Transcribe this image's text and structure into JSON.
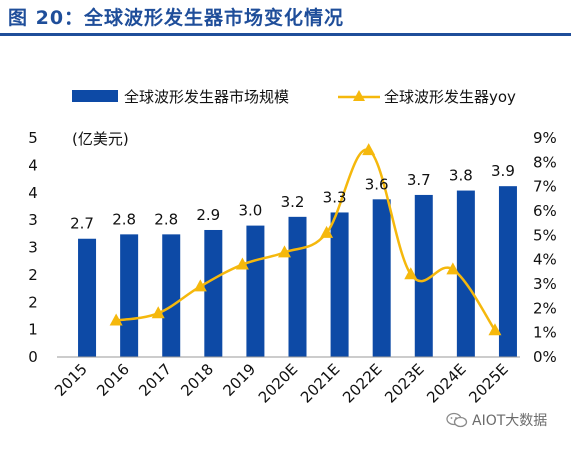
{
  "figure": {
    "title": "图 20：全球波形发生器市场变化情况",
    "watermark": "AIOT大数据"
  },
  "colors": {
    "title": "#1f4e9a",
    "bar": "#0d4aa6",
    "line": "#f5b80c"
  },
  "chart_data": {
    "type": "bar+line",
    "categories": [
      "2015",
      "2016",
      "2017",
      "2018",
      "2019",
      "2020E",
      "2021E",
      "2022E",
      "2023E",
      "2024E",
      "2025E"
    ],
    "series": [
      {
        "name": "全球波形发生器市场规模",
        "type": "bar",
        "axis": "left",
        "values": [
          2.7,
          2.8,
          2.8,
          2.9,
          3.0,
          3.2,
          3.3,
          3.6,
          3.7,
          3.8,
          3.9
        ],
        "data_labels": [
          "2.7",
          "2.8",
          "2.8",
          "2.9",
          "3.0",
          "3.2",
          "3.3",
          "3.6",
          "3.7",
          "3.8",
          "3.9"
        ]
      },
      {
        "name": "全球波形发生器yoy",
        "type": "line",
        "axis": "right",
        "marker": "triangle",
        "values": [
          null,
          1.5,
          1.8,
          2.9,
          3.8,
          4.3,
          5.1,
          8.5,
          3.4,
          3.6,
          1.1
        ]
      }
    ],
    "left_axis": {
      "unit_label": "(亿美元)",
      "ylim": [
        0,
        5
      ],
      "ticks": [
        "0",
        "1",
        "2",
        "2",
        "3",
        "3",
        "4",
        "4",
        "5"
      ]
    },
    "right_axis": {
      "ylim": [
        0,
        9
      ],
      "ticks": [
        "0%",
        "1%",
        "2%",
        "3%",
        "4%",
        "5%",
        "6%",
        "7%",
        "8%",
        "9%"
      ]
    },
    "legend_position": "top",
    "grid": false
  }
}
